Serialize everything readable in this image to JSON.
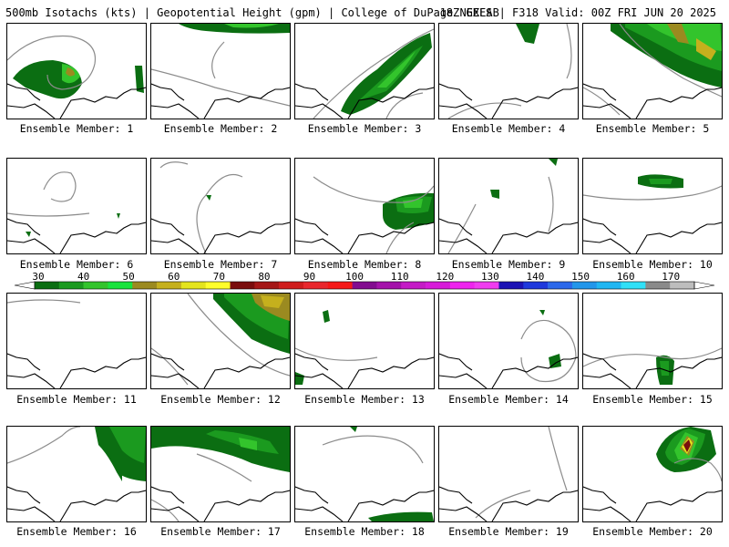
{
  "header": {
    "left": "500mb Isotachs (kts) | Geopotential Height (gpm) | College of DuPage NEXLAB",
    "right": "18Z GEFS | F318 Valid: 00Z FRI JUN 20 2025"
  },
  "colorbar": {
    "labels": [
      "30",
      "40",
      "50",
      "60",
      "70",
      "80",
      "90",
      "100",
      "110",
      "120",
      "130",
      "140",
      "150",
      "160",
      "170"
    ],
    "colors": [
      "#0b6e12",
      "#1b9a1f",
      "#33c42c",
      "#19e33d",
      "#9b8a20",
      "#c5b01d",
      "#e4e41d",
      "#fefe2b",
      "#7a0d0d",
      "#a51717",
      "#cf1c1c",
      "#e9272d",
      "#f51818",
      "#820c8f",
      "#a412aa",
      "#c41bc6",
      "#d71ad9",
      "#ee24ee",
      "#f03cf0",
      "#1c12b4",
      "#1e38dc",
      "#2c68ea",
      "#2296ea",
      "#20b6f2",
      "#30e0f7",
      "#8a8a8a",
      "#bdbdbd"
    ]
  },
  "members": [
    {
      "label": "Ensemble Member: 1",
      "icon": "hurricane-jet-wind-icon"
    },
    {
      "label": "Ensemble Member: 2",
      "icon": "northern-jet-wind-icon"
    },
    {
      "label": "Ensemble Member: 3",
      "icon": "diagonal-jet-wind-icon"
    },
    {
      "label": "Ensemble Member: 4",
      "icon": "small-jet-wind-icon"
    },
    {
      "label": "Ensemble Member: 5",
      "icon": "strong-northeast-jet-wind-icon"
    },
    {
      "label": "Ensemble Member: 6",
      "icon": "weak-wind-icon"
    },
    {
      "label": "Ensemble Member: 7",
      "icon": "weak-wind-icon"
    },
    {
      "label": "Ensemble Member: 8",
      "icon": "gulf-jet-wind-icon"
    },
    {
      "label": "Ensemble Member: 9",
      "icon": "weak-wind-icon"
    },
    {
      "label": "Ensemble Member: 10",
      "icon": "atlantic-jet-wind-icon"
    },
    {
      "label": "Ensemble Member: 11",
      "icon": "calm-wind-icon"
    },
    {
      "label": "Ensemble Member: 12",
      "icon": "strong-northeast-jet-wind-icon"
    },
    {
      "label": "Ensemble Member: 13",
      "icon": "weak-wind-icon"
    },
    {
      "label": "Ensemble Member: 14",
      "icon": "closed-low-wind-icon"
    },
    {
      "label": "Ensemble Member: 15",
      "icon": "florida-wind-icon"
    },
    {
      "label": "Ensemble Member: 16",
      "icon": "eastern-jet-wind-icon"
    },
    {
      "label": "Ensemble Member: 17",
      "icon": "broad-jet-wind-icon"
    },
    {
      "label": "Ensemble Member: 18",
      "icon": "southern-wind-icon"
    },
    {
      "label": "Ensemble Member: 19",
      "icon": "calm-wind-icon"
    },
    {
      "label": "Ensemble Member: 20",
      "icon": "atlantic-hurricane-wind-icon"
    }
  ]
}
